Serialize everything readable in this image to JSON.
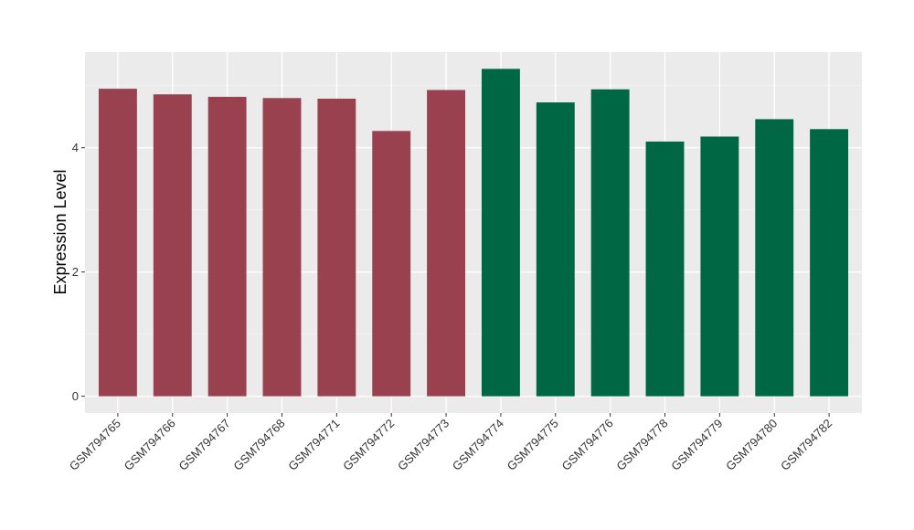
{
  "chart_data": {
    "type": "bar",
    "title": "",
    "xlabel": "",
    "ylabel": "Expression Level",
    "categories": [
      "GSM794765",
      "GSM794766",
      "GSM794767",
      "GSM794768",
      "GSM794771",
      "GSM794772",
      "GSM794773",
      "GSM794774",
      "GSM794775",
      "GSM794776",
      "GSM794778",
      "GSM794779",
      "GSM794780",
      "GSM794782"
    ],
    "values": [
      4.95,
      4.86,
      4.82,
      4.8,
      4.79,
      4.27,
      4.93,
      5.27,
      4.73,
      4.94,
      4.1,
      4.18,
      4.46,
      4.3
    ],
    "bar_colors": [
      "#9a4150",
      "#9a4150",
      "#9a4150",
      "#9a4150",
      "#9a4150",
      "#9a4150",
      "#9a4150",
      "#006745",
      "#006745",
      "#006745",
      "#006745",
      "#006745",
      "#006745",
      "#006745"
    ],
    "ylim": [
      -0.27,
      5.54
    ],
    "yticks": [
      0,
      2,
      4
    ],
    "grid": true,
    "panel_background": "#ebebeb",
    "legend": "none"
  }
}
